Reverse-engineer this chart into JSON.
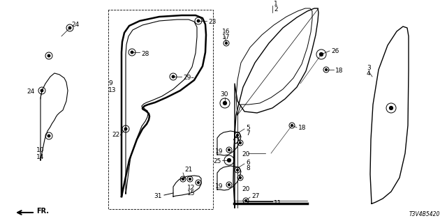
{
  "bg_color": "#ffffff",
  "diagram_code": "T3V4B5420",
  "line_color": "#000000",
  "label_fontsize": 6.5
}
